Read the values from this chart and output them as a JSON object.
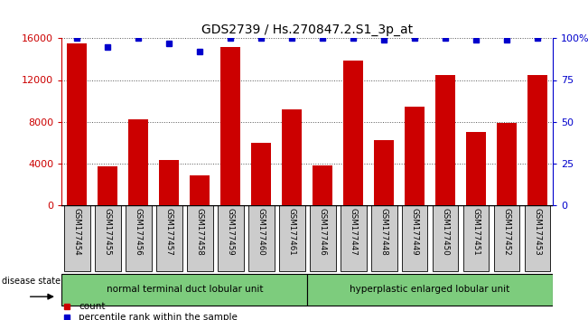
{
  "title": "GDS2739 / Hs.270847.2.S1_3p_at",
  "samples": [
    "GSM177454",
    "GSM177455",
    "GSM177456",
    "GSM177457",
    "GSM177458",
    "GSM177459",
    "GSM177460",
    "GSM177461",
    "GSM177446",
    "GSM177447",
    "GSM177448",
    "GSM177449",
    "GSM177450",
    "GSM177451",
    "GSM177452",
    "GSM177453"
  ],
  "counts": [
    15500,
    3700,
    8200,
    4300,
    2800,
    15200,
    6000,
    9200,
    3800,
    13900,
    6200,
    9400,
    12500,
    7000,
    7900,
    12500
  ],
  "percentiles": [
    100,
    95,
    100,
    97,
    92,
    100,
    100,
    100,
    100,
    100,
    99,
    100,
    100,
    99,
    99,
    100
  ],
  "bar_color": "#cc0000",
  "dot_color": "#0000cc",
  "group1_label": "normal terminal duct lobular unit",
  "group2_label": "hyperplastic enlarged lobular unit",
  "group1_count": 8,
  "group2_count": 8,
  "ylim_left": [
    0,
    16000
  ],
  "ylim_right": [
    0,
    100
  ],
  "yticks_left": [
    0,
    4000,
    8000,
    12000,
    16000
  ],
  "yticks_right": [
    0,
    25,
    50,
    75,
    100
  ],
  "yticklabels_right": [
    "0",
    "25",
    "50",
    "75",
    "100%"
  ],
  "group1_color": "#7dcc7d",
  "group2_color": "#7dcc7d",
  "disease_state_label": "disease state",
  "legend_count_label": "count",
  "legend_pct_label": "percentile rank within the sample",
  "grid_color": "#555555",
  "tick_label_bg": "#cccccc",
  "bg_color": "#ffffff"
}
